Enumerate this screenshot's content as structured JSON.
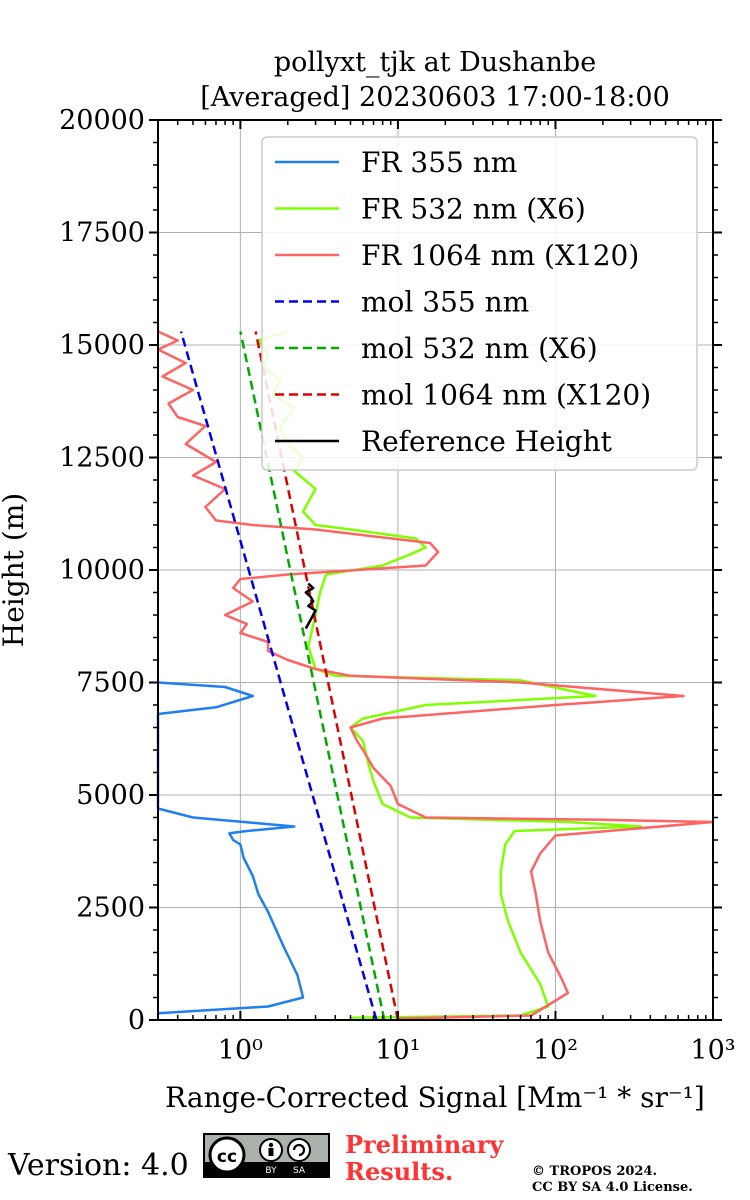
{
  "chart_data": {
    "type": "line",
    "title": [
      "pollyxt_tjk at Dushanbe",
      "[Averaged] 20230603 17:00-18:00"
    ],
    "xlabel": "Range-Corrected Signal [Mm⁻¹ * sr⁻¹]",
    "ylabel": "Height (m)",
    "xscale": "log",
    "xlim": [
      0.3,
      1000
    ],
    "ylim": [
      0,
      20000
    ],
    "grid": true,
    "legend_position": "top-right",
    "xticks": [
      1,
      10,
      100,
      1000
    ],
    "xtick_labels": [
      "10⁰",
      "10¹",
      "10²",
      "10³"
    ],
    "yticks": [
      0,
      2500,
      5000,
      7500,
      10000,
      12500,
      15000,
      17500,
      20000
    ],
    "ytick_labels": [
      "0",
      "2500",
      "5000",
      "7500",
      "10000",
      "12500",
      "15000",
      "17500",
      "20000"
    ],
    "series": [
      {
        "name": "FR 355 nm",
        "color": "#1f7fef",
        "style": "solid",
        "x": [
          0.3,
          1.5,
          2.5,
          2.3,
          1.9,
          1.5,
          1.3,
          1.2,
          1.05,
          1.0,
          0.9,
          0.85,
          1.1,
          2.2,
          0.5,
          0.3,
          0.3,
          0.7,
          1.2,
          0.8,
          0.3
        ],
        "y": [
          150,
          300,
          500,
          1000,
          1600,
          2400,
          2800,
          3200,
          3600,
          3900,
          4000,
          4150,
          4200,
          4300,
          4500,
          4700,
          6800,
          6950,
          7200,
          7400,
          7500
        ]
      },
      {
        "name": "FR 532 nm (X6)",
        "color": "#7fff00",
        "style": "solid",
        "x": [
          5,
          60,
          90,
          80,
          60,
          50,
          45,
          45,
          48,
          55,
          350,
          120,
          12,
          8,
          7,
          6.5,
          6,
          5,
          6,
          15,
          180,
          60,
          4,
          3,
          2.7,
          3,
          3.2,
          3.5,
          8,
          12,
          15,
          13,
          5,
          3,
          2.5,
          3,
          2.2,
          2.5,
          2,
          1.8,
          2.2,
          1.6,
          1.8,
          1.4,
          1.5,
          1.3,
          2
        ],
        "y": [
          50,
          100,
          300,
          800,
          1500,
          2200,
          2800,
          3300,
          3900,
          4200,
          4300,
          4400,
          4500,
          4800,
          5300,
          5700,
          6200,
          6500,
          6700,
          7000,
          7200,
          7550,
          7650,
          7800,
          8300,
          9000,
          9500,
          9900,
          10100,
          10350,
          10500,
          10700,
          10900,
          11000,
          11300,
          11800,
          12200,
          12500,
          12800,
          13200,
          13600,
          13900,
          14200,
          14500,
          14800,
          15100,
          15300
        ]
      },
      {
        "name": "FR 1064 nm (X120)",
        "color": "#ff6464",
        "style": "solid",
        "x": [
          10,
          70,
          120,
          110,
          90,
          80,
          75,
          70,
          80,
          100,
          1000,
          200,
          15,
          10,
          9,
          7,
          6,
          5.5,
          5,
          8,
          100,
          650,
          60,
          5,
          3,
          2,
          1.5,
          1.5,
          1.0,
          1.1,
          0.8,
          1.2,
          0.9,
          1.0,
          2,
          15,
          18,
          16,
          3,
          1.2,
          0.7,
          0.6,
          0.8,
          0.5,
          0.7,
          0.45,
          0.6,
          0.4,
          0.35,
          0.5,
          0.32,
          0.45,
          0.3,
          0.4,
          0.3
        ],
        "y": [
          30,
          100,
          600,
          900,
          1500,
          2200,
          2800,
          3300,
          3700,
          4100,
          4400,
          4450,
          4500,
          4800,
          5200,
          5600,
          6000,
          6200,
          6500,
          6700,
          7000,
          7200,
          7500,
          7650,
          7800,
          8000,
          8200,
          8400,
          8600,
          8800,
          9000,
          9300,
          9600,
          9800,
          9900,
          10100,
          10400,
          10600,
          10900,
          11000,
          11100,
          11400,
          11800,
          12100,
          12400,
          12800,
          13200,
          13400,
          13700,
          14000,
          14300,
          14600,
          14900,
          15100,
          15300
        ]
      },
      {
        "name": "mol 355 nm",
        "color": "#0000ee",
        "style": "dashed",
        "x": [
          7.3,
          0.42
        ],
        "y": [
          0,
          15300
        ]
      },
      {
        "name": "mol 532 nm (X6)",
        "color": "#00aa00",
        "style": "dashed",
        "x": [
          8.2,
          1.0
        ],
        "y": [
          0,
          15300
        ]
      },
      {
        "name": "mol 1064 nm (X120)",
        "color": "#dd0000",
        "style": "dashed",
        "x": [
          10.0,
          1.25
        ],
        "y": [
          0,
          15300
        ]
      },
      {
        "name": "Reference Height",
        "color": "#000000",
        "style": "solid",
        "x": [
          2.6,
          2.8,
          3.0,
          2.7,
          2.9,
          2.8,
          2.6,
          2.9,
          2.7
        ],
        "y": [
          8700,
          8900,
          9100,
          9200,
          9300,
          9400,
          9500,
          9600,
          9700
        ]
      }
    ]
  },
  "footer": {
    "version": "Version: 4.0",
    "badge": {
      "cc": "cc",
      "by": "BY",
      "sa": "SA"
    },
    "preliminary": [
      "Preliminary",
      "Results."
    ],
    "copyright": [
      "© TROPOS 2024.",
      "CC BY SA 4.0 License."
    ]
  }
}
